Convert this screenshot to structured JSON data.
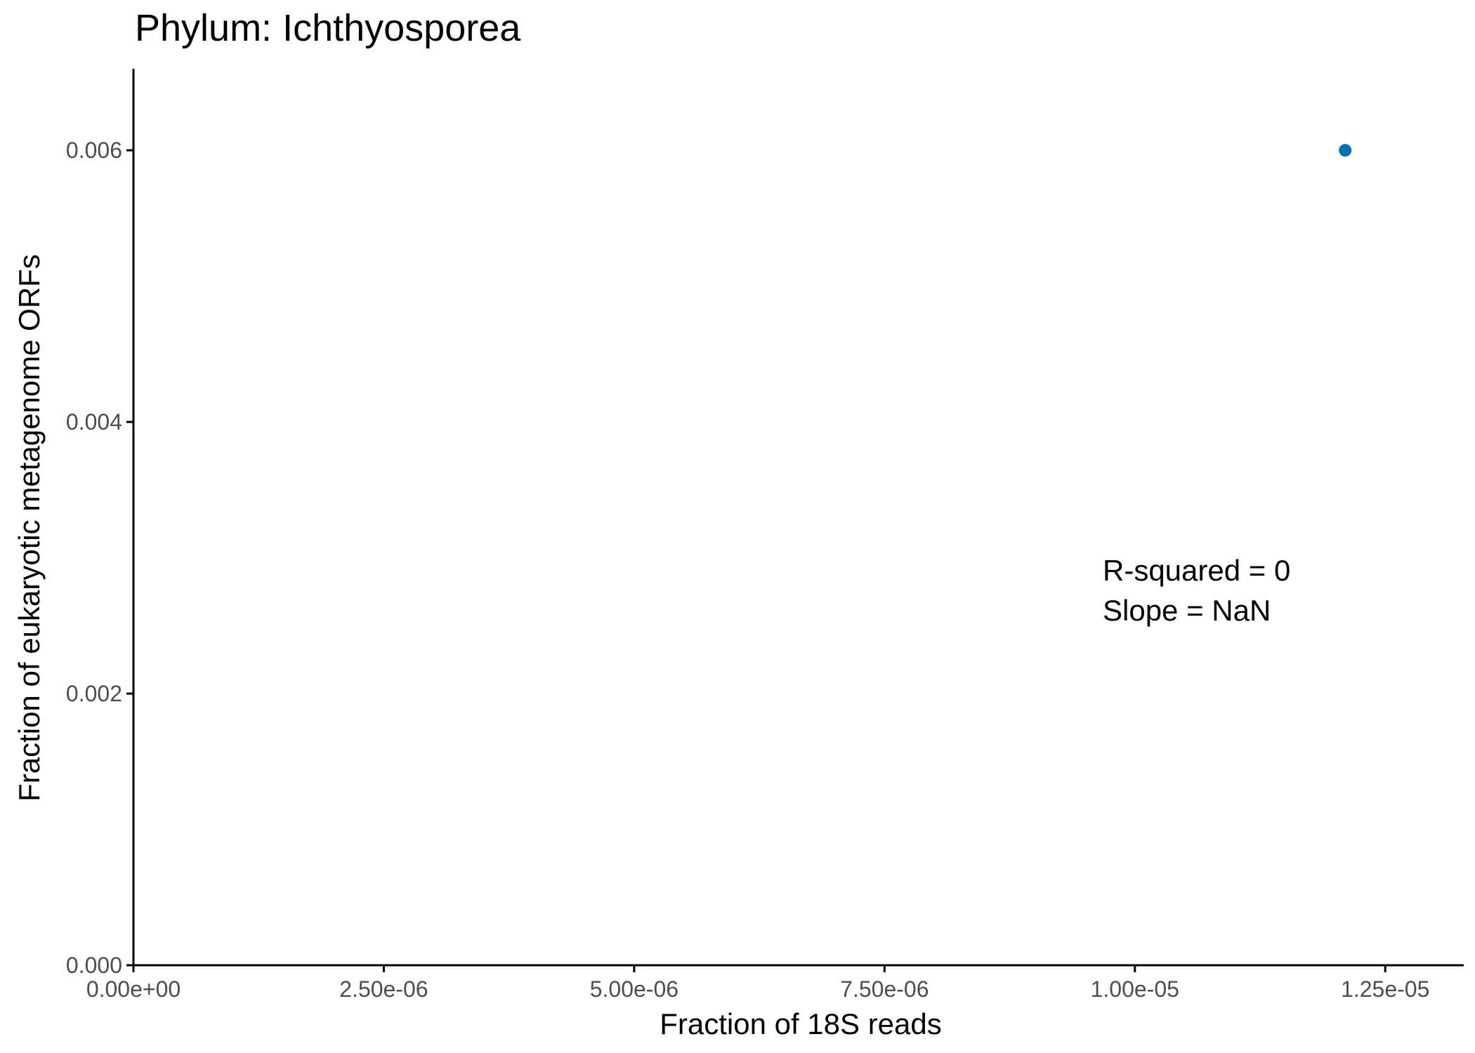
{
  "chart_data": {
    "type": "scatter",
    "title": "Phylum:  Ichthyosporea",
    "xlabel": "Fraction of 18S reads",
    "ylabel": "Fraction of eukaryotic metagenome ORFs",
    "xlim": [
      0,
      1.3284e-05
    ],
    "ylim": [
      0,
      0.0066
    ],
    "xticks": [
      0,
      2.5e-06,
      5e-06,
      7.5e-06,
      1e-05,
      1.25e-05
    ],
    "xtick_labels": [
      "0.00e+00",
      "2.50e-06",
      "5.00e-06",
      "7.50e-06",
      "1.00e-05",
      "1.25e-05"
    ],
    "yticks": [
      0,
      0.002,
      0.004,
      0.006
    ],
    "ytick_labels": [
      "0.000",
      "0.002",
      "0.004",
      "0.006"
    ],
    "points": [
      {
        "x": 1.21e-05,
        "y": 0.006
      }
    ],
    "point_color": "#0072b2",
    "annotations": [
      "R-squared =  0",
      "Slope =  NaN"
    ],
    "grid": false,
    "legend": "none"
  }
}
